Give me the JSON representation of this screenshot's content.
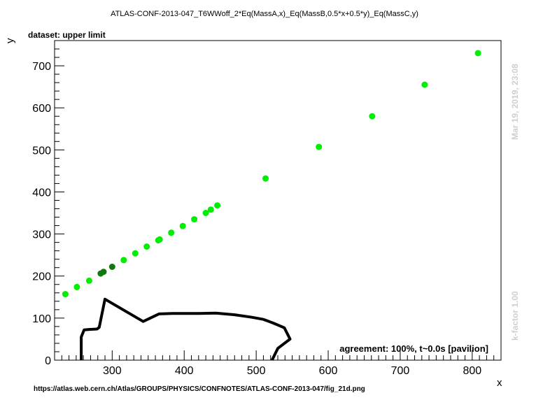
{
  "header": {
    "title": "ATLAS-CONF-2013-047_T6WWoff_2*Eq(MassA,x)_Eq(MassB,0.5*x+0.5*y)_Eq(MassC,y)",
    "dataset_label": "dataset: upper limit"
  },
  "footer": {
    "url": "https://atlas.web.cern.ch/Atlas/GROUPS/PHYSICS/CONFNOTES/ATLAS-CONF-2013-047/fig_21d.png",
    "agreement": "agreement: 100%, t~0.0s [pavilion]"
  },
  "side": {
    "timestamp": "Mar 19, 2019, 23:08",
    "kfactor": "k-factor 1.00"
  },
  "colors": {
    "point_bright": "#00ee00",
    "point_dark": "#117711",
    "contour": "#000000"
  },
  "chart_data": {
    "type": "scatter",
    "xlabel": "x",
    "ylabel": "y",
    "xlim": [
      220,
      840
    ],
    "ylim": [
      0,
      760
    ],
    "x_ticks": [
      300,
      400,
      500,
      600,
      700,
      800
    ],
    "y_ticks": [
      0,
      100,
      200,
      300,
      400,
      500,
      600,
      700
    ],
    "x_tick_labels": [
      "300",
      "400",
      "500",
      "600",
      "700",
      "800"
    ],
    "y_tick_labels": [
      "0",
      "100",
      "200",
      "300",
      "400",
      "500",
      "600",
      "700"
    ],
    "points": [
      {
        "x": 235,
        "y": 157,
        "excluded": false
      },
      {
        "x": 251,
        "y": 174,
        "excluded": false
      },
      {
        "x": 268,
        "y": 189,
        "excluded": false
      },
      {
        "x": 284,
        "y": 206,
        "excluded": true
      },
      {
        "x": 288,
        "y": 210,
        "excluded": true
      },
      {
        "x": 300,
        "y": 222,
        "excluded": true
      },
      {
        "x": 316,
        "y": 238,
        "excluded": false
      },
      {
        "x": 332,
        "y": 254,
        "excluded": false
      },
      {
        "x": 348,
        "y": 270,
        "excluded": false
      },
      {
        "x": 364,
        "y": 285,
        "excluded": false
      },
      {
        "x": 366,
        "y": 287,
        "excluded": false
      },
      {
        "x": 382,
        "y": 303,
        "excluded": false
      },
      {
        "x": 398,
        "y": 319,
        "excluded": false
      },
      {
        "x": 414,
        "y": 335,
        "excluded": false
      },
      {
        "x": 430,
        "y": 350,
        "excluded": false
      },
      {
        "x": 437,
        "y": 358,
        "excluded": false
      },
      {
        "x": 446,
        "y": 368,
        "excluded": false
      },
      {
        "x": 513,
        "y": 432,
        "excluded": false
      },
      {
        "x": 587,
        "y": 507,
        "excluded": false
      },
      {
        "x": 661,
        "y": 580,
        "excluded": false
      },
      {
        "x": 734,
        "y": 655,
        "excluded": false
      },
      {
        "x": 808,
        "y": 730,
        "excluded": false
      }
    ],
    "contour": [
      [
        257,
        0
      ],
      [
        257,
        55
      ],
      [
        261,
        72
      ],
      [
        268,
        73
      ],
      [
        279,
        74
      ],
      [
        282,
        78
      ],
      [
        290,
        145
      ],
      [
        343,
        92
      ],
      [
        365,
        110
      ],
      [
        384,
        111
      ],
      [
        420,
        111
      ],
      [
        444,
        112
      ],
      [
        470,
        108
      ],
      [
        494,
        102
      ],
      [
        510,
        97
      ],
      [
        524,
        88
      ],
      [
        539,
        77
      ],
      [
        547,
        50
      ],
      [
        530,
        28
      ],
      [
        522,
        0
      ]
    ]
  }
}
